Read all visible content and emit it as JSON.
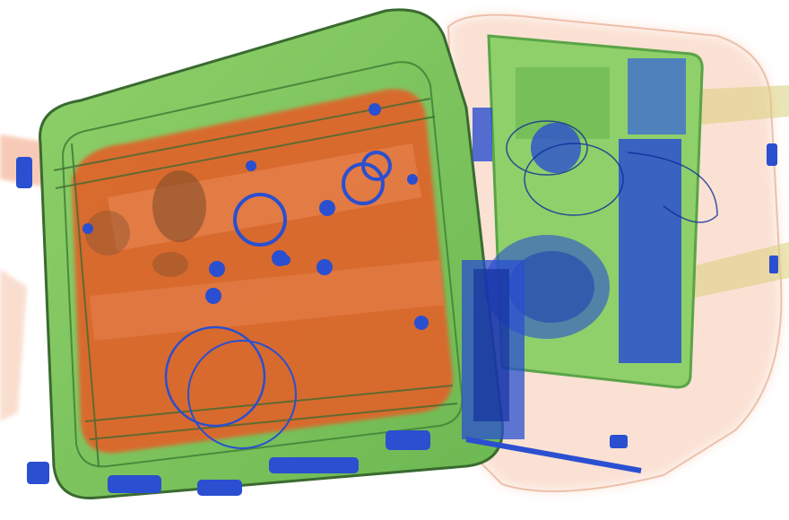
{
  "scene": {
    "kind": "x-ray baggage scan",
    "colors": {
      "background": "#ffffff",
      "organic": "#e0642c",
      "organic_light": "#f09060",
      "mixed": "#8fd06a",
      "mixed_dark": "#5aa448",
      "metal": "#2a4fd0",
      "metal_dark": "#0f2a9a",
      "outline": "#3a6a30"
    }
  }
}
